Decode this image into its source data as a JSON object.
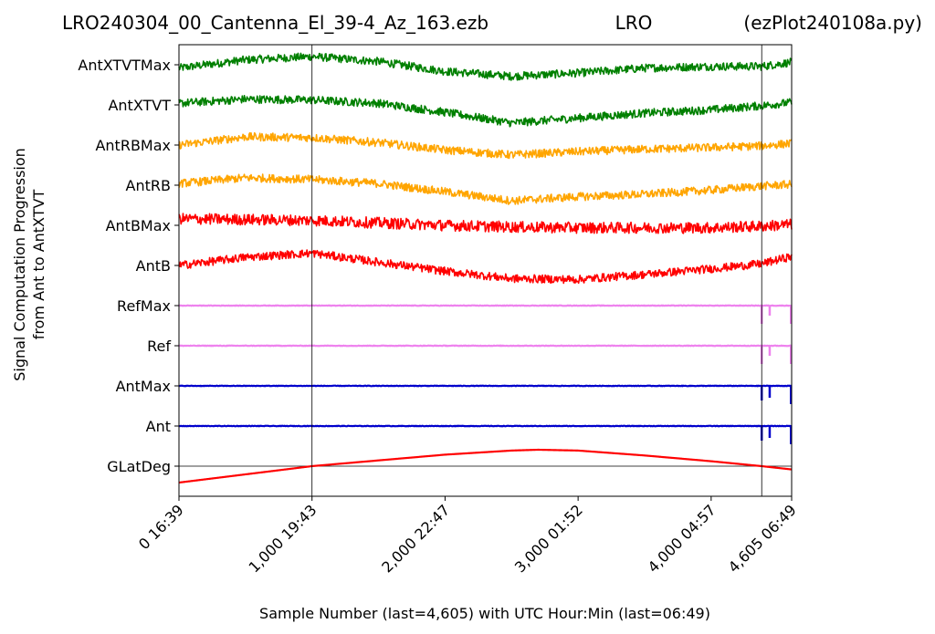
{
  "chart_data": {
    "type": "line",
    "title": {
      "left": "LRO240304_00_Cantenna_El_39-4_Az_163.ezb",
      "center": "LRO",
      "right": "(ezPlot240108a.py)"
    },
    "xlabel": "Sample Number (last=4,605) with UTC Hour:Min (last=06:49)",
    "ylabel_lines": [
      "Signal Computation Progression",
      "from Ant to AntXTVT"
    ],
    "xlim": [
      0,
      4605
    ],
    "xticks": [
      {
        "value": 0,
        "label": "0  16:39"
      },
      {
        "value": 1000,
        "label": "1,000  19:43"
      },
      {
        "value": 2000,
        "label": "2,000  22:47"
      },
      {
        "value": 3000,
        "label": "3,000  01:52"
      },
      {
        "value": 4000,
        "label": "4,000  04:57"
      },
      {
        "value": 4605,
        "label": "4,605  06:49"
      }
    ],
    "vlines": [
      1000,
      4380
    ],
    "grid": false,
    "legend": "none",
    "series": [
      {
        "name": "AntXTVTMax",
        "color": "#008000",
        "noise": 0.55,
        "spikes": [],
        "x": [
          0,
          500,
          1000,
          1500,
          2000,
          2500,
          3000,
          3500,
          4000,
          4380,
          4605
        ],
        "y": [
          -0.2,
          0.3,
          0.5,
          0.2,
          -0.4,
          -0.7,
          -0.5,
          -0.2,
          -0.1,
          -0.1,
          0.15
        ]
      },
      {
        "name": "AntXTVT",
        "color": "#008000",
        "noise": 0.55,
        "spikes": [],
        "x": [
          0,
          500,
          1000,
          1500,
          2000,
          2500,
          3000,
          3500,
          4000,
          4380,
          4605
        ],
        "y": [
          0.1,
          0.35,
          0.3,
          0.1,
          -0.45,
          -1.1,
          -0.8,
          -0.5,
          -0.3,
          -0.05,
          0.15
        ]
      },
      {
        "name": "AntRBMax",
        "color": "#FFA500",
        "noise": 0.55,
        "spikes": [],
        "x": [
          0,
          500,
          1000,
          1500,
          2000,
          2500,
          3000,
          3500,
          4000,
          4380,
          4605
        ],
        "y": [
          0.0,
          0.5,
          0.45,
          0.15,
          -0.3,
          -0.6,
          -0.4,
          -0.25,
          -0.15,
          -0.05,
          0.1
        ]
      },
      {
        "name": "AntRB",
        "color": "#FFA500",
        "noise": 0.55,
        "spikes": [],
        "x": [
          0,
          500,
          1000,
          1500,
          2000,
          2500,
          3000,
          3500,
          4000,
          4380,
          4605
        ],
        "y": [
          0.1,
          0.45,
          0.35,
          0.1,
          -0.4,
          -0.95,
          -0.7,
          -0.55,
          -0.3,
          -0.05,
          0.05
        ]
      },
      {
        "name": "AntBMax",
        "color": "#FF0000",
        "noise": 0.75,
        "spikes": [],
        "x": [
          0,
          500,
          1000,
          1500,
          2000,
          2500,
          3000,
          3500,
          4000,
          4380,
          4605
        ],
        "y": [
          0.4,
          0.35,
          0.3,
          0.15,
          0.0,
          -0.1,
          -0.15,
          -0.15,
          -0.15,
          -0.05,
          0.05
        ]
      },
      {
        "name": "AntB",
        "color": "#FF0000",
        "noise": 0.55,
        "spikes": [],
        "x": [
          0,
          500,
          1000,
          1500,
          2000,
          2500,
          3000,
          3500,
          4000,
          4380,
          4605
        ],
        "y": [
          0.0,
          0.5,
          0.75,
          0.2,
          -0.35,
          -0.8,
          -0.85,
          -0.55,
          -0.2,
          0.1,
          0.55
        ]
      },
      {
        "name": "RefMax",
        "color": "#EE82EE",
        "noise": 0.04,
        "spikes": [
          {
            "x": 4380,
            "depth": 1.0
          },
          {
            "x": 4440,
            "depth": 0.55
          },
          {
            "x": 4600,
            "depth": 1.0
          }
        ],
        "x": [
          0,
          4605
        ],
        "y": [
          0,
          0
        ]
      },
      {
        "name": "Ref",
        "color": "#EE82EE",
        "noise": 0.04,
        "spikes": [
          {
            "x": 4380,
            "depth": 1.0
          },
          {
            "x": 4440,
            "depth": 0.55
          },
          {
            "x": 4600,
            "depth": 1.0
          }
        ],
        "x": [
          0,
          4605
        ],
        "y": [
          0,
          0
        ]
      },
      {
        "name": "AntMax",
        "color": "#0000CC",
        "noise": 0.04,
        "spikes": [
          {
            "x": 4380,
            "depth": 0.8
          },
          {
            "x": 4440,
            "depth": 0.65
          },
          {
            "x": 4600,
            "depth": 1.0
          }
        ],
        "x": [
          0,
          4605
        ],
        "y": [
          0,
          0
        ]
      },
      {
        "name": "Ant",
        "color": "#0000CC",
        "noise": 0.04,
        "spikes": [
          {
            "x": 4380,
            "depth": 0.8
          },
          {
            "x": 4440,
            "depth": 0.65
          },
          {
            "x": 4600,
            "depth": 1.0
          }
        ],
        "x": [
          0,
          4605
        ],
        "y": [
          0,
          0
        ]
      },
      {
        "name": "GLatDeg",
        "color": "#FF0000",
        "noise": 0,
        "spikes": [],
        "x": [
          0,
          500,
          1000,
          1500,
          2000,
          2500,
          2700,
          3000,
          3500,
          4000,
          4380,
          4605
        ],
        "y": [
          -1.0,
          -0.5,
          0.0,
          0.35,
          0.7,
          0.95,
          1.0,
          0.95,
          0.65,
          0.3,
          0.0,
          -0.2
        ]
      }
    ]
  }
}
